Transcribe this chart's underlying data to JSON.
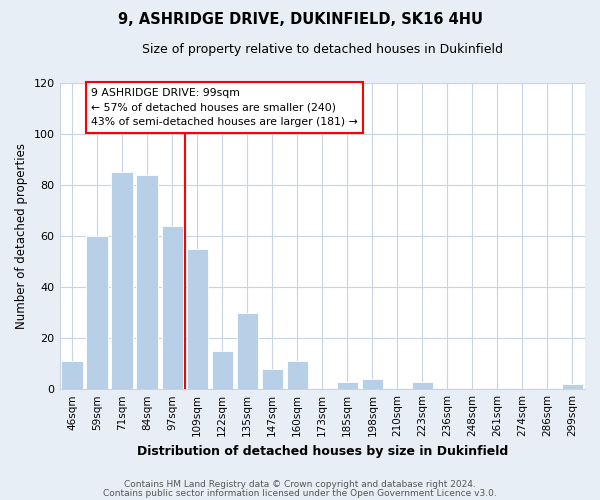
{
  "title": "9, ASHRIDGE DRIVE, DUKINFIELD, SK16 4HU",
  "subtitle": "Size of property relative to detached houses in Dukinfield",
  "xlabel": "Distribution of detached houses by size in Dukinfield",
  "ylabel": "Number of detached properties",
  "bar_labels": [
    "46sqm",
    "59sqm",
    "71sqm",
    "84sqm",
    "97sqm",
    "109sqm",
    "122sqm",
    "135sqm",
    "147sqm",
    "160sqm",
    "173sqm",
    "185sqm",
    "198sqm",
    "210sqm",
    "223sqm",
    "236sqm",
    "248sqm",
    "261sqm",
    "274sqm",
    "286sqm",
    "299sqm"
  ],
  "bar_values": [
    11,
    60,
    85,
    84,
    64,
    55,
    15,
    30,
    8,
    11,
    0,
    3,
    4,
    0,
    3,
    0,
    0,
    0,
    0,
    0,
    2
  ],
  "bar_color": "#b8cfe8",
  "redline_after_index": 4,
  "ylim": [
    0,
    120
  ],
  "yticks": [
    0,
    20,
    40,
    60,
    80,
    100,
    120
  ],
  "annotation_title": "9 ASHRIDGE DRIVE: 99sqm",
  "annotation_line1": "← 57% of detached houses are smaller (240)",
  "annotation_line2": "43% of semi-detached houses are larger (181) →",
  "footer1": "Contains HM Land Registry data © Crown copyright and database right 2024.",
  "footer2": "Contains public sector information licensed under the Open Government Licence v3.0.",
  "background_color": "#e8eef5",
  "plot_bg_color": "#ffffff",
  "grid_color": "#c8d4e4"
}
